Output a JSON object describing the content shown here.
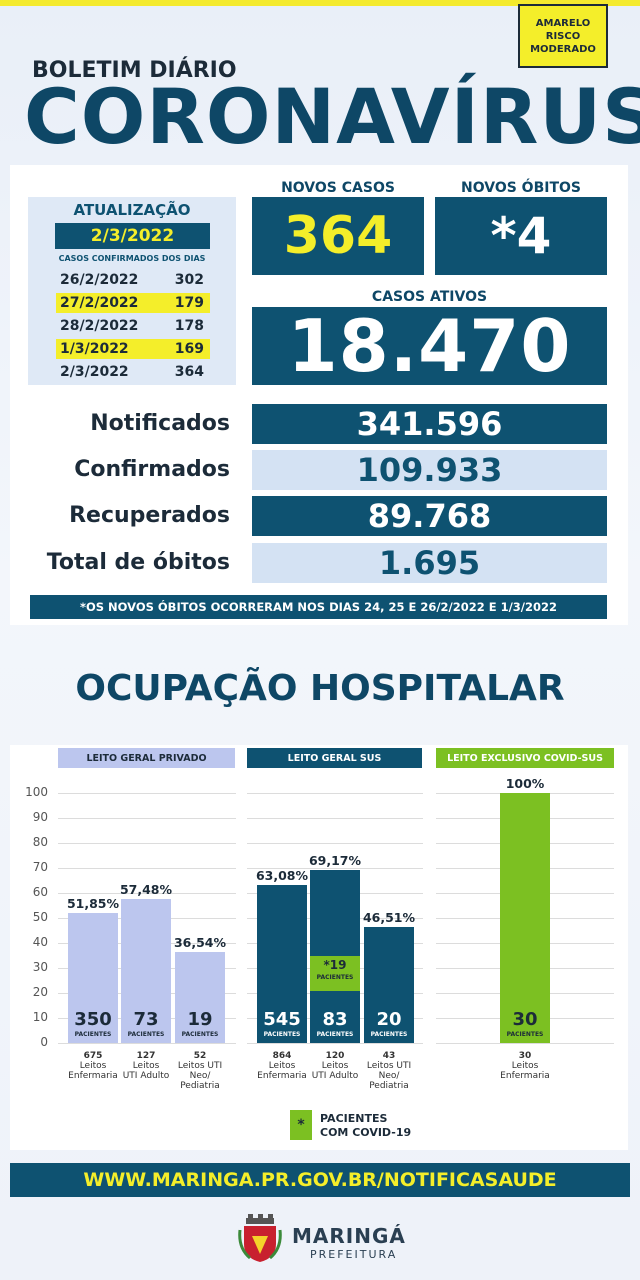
{
  "header": {
    "risk_badge": [
      "AMARELO",
      "RISCO",
      "MODERADO"
    ],
    "bulletin_label": "BOLETIM DIÁRIO",
    "title": "CORONAVÍRUS"
  },
  "update": {
    "title": "ATUALIZAÇÃO",
    "date": "2/3/2022",
    "caption": "CASOS CONFIRMADOS DOS DIAS",
    "days": [
      {
        "date": "26/2/2022",
        "value": "302"
      },
      {
        "date": "27/2/2022",
        "value": "179"
      },
      {
        "date": "28/2/2022",
        "value": "178"
      },
      {
        "date": "1/3/2022",
        "value": "169"
      },
      {
        "date": "2/3/2022",
        "value": "364"
      }
    ]
  },
  "highlights": {
    "new_cases_label": "NOVOS CASOS",
    "new_cases": "364",
    "new_deaths_label": "NOVOS ÓBITOS",
    "new_deaths": "*4",
    "active_label": "CASOS ATIVOS",
    "active": "18.470"
  },
  "totals": [
    {
      "label": "Notificados",
      "value": "341.596"
    },
    {
      "label": "Confirmados",
      "value": "109.933"
    },
    {
      "label": "Recuperados",
      "value": "89.768"
    },
    {
      "label": "Total de óbitos",
      "value": "1.695"
    }
  ],
  "footnote": "*OS NOVOS  ÓBITOS OCORRERAM NOS DIAS 24, 25 E 26/2/2022 E 1/3/2022",
  "hospital_title": "OCUPAÇÃO HOSPITALAR",
  "colors": {
    "teal": "#0e5271",
    "yellow": "#f4ee2a",
    "lavender": "#bcc6ee",
    "green": "#7cc022",
    "pale_blue": "#d4e2f3"
  },
  "chart_data": {
    "type": "bar",
    "ylim": [
      0,
      100
    ],
    "yticks": [
      0,
      10,
      20,
      30,
      40,
      50,
      60,
      70,
      80,
      90,
      100
    ],
    "grid": true,
    "groups": [
      {
        "name": "LEITO GERAL PRIVADO",
        "bars": [
          {
            "label": "675 Leitos Enfermaria",
            "caption": [
              "675",
              "Leitos",
              "Enfermaria"
            ],
            "percent": 51.85,
            "percent_label": "51,85%",
            "patients": "350"
          },
          {
            "label": "127 Leitos UTI Adulto",
            "caption": [
              "127",
              "Leitos",
              "UTI Adulto"
            ],
            "percent": 57.48,
            "percent_label": "57,48%",
            "patients": "73"
          },
          {
            "label": "52 Leitos UTI Neo/Pediatria",
            "caption": [
              "52",
              "Leitos UTI",
              "Neo/",
              "Pediatria"
            ],
            "percent": 36.54,
            "percent_label": "36,54%",
            "patients": "19"
          }
        ]
      },
      {
        "name": "LEITO GERAL SUS",
        "bars": [
          {
            "label": "864 Leitos Enfermaria",
            "caption": [
              "864",
              "Leitos",
              "Enfermaria"
            ],
            "percent": 63.08,
            "percent_label": "63,08%",
            "patients": "545"
          },
          {
            "label": "120 Leitos UTI Adulto",
            "caption": [
              "120",
              "Leitos",
              "UTI Adulto"
            ],
            "percent": 69.17,
            "percent_label": "69,17%",
            "patients": "83",
            "covid_patients": "*19",
            "covid_percent": 15.8
          },
          {
            "label": "43 Leitos UTI Neo/Pediatria",
            "caption": [
              "43",
              "Leitos UTI",
              "Neo/",
              "Pediatria"
            ],
            "percent": 46.51,
            "percent_label": "46,51%",
            "patients": "20"
          }
        ]
      },
      {
        "name": "LEITO EXCLUSIVO COVID-SUS",
        "bars": [
          {
            "label": "30 Leitos Enfermaria",
            "caption": [
              "30",
              "Leitos",
              "Enfermaria"
            ],
            "percent": 100,
            "percent_label": "100%",
            "patients": "30"
          }
        ]
      }
    ],
    "patients_word": "PACIENTES"
  },
  "legend": {
    "mark": "*",
    "line1": "PACIENTES",
    "line2": "COM COVID-19"
  },
  "url": "WWW.MARINGA.PR.GOV.BR/NOTIFICASAUDE",
  "logo": {
    "name": "MARINGÁ",
    "sub": "PREFEITURA"
  }
}
